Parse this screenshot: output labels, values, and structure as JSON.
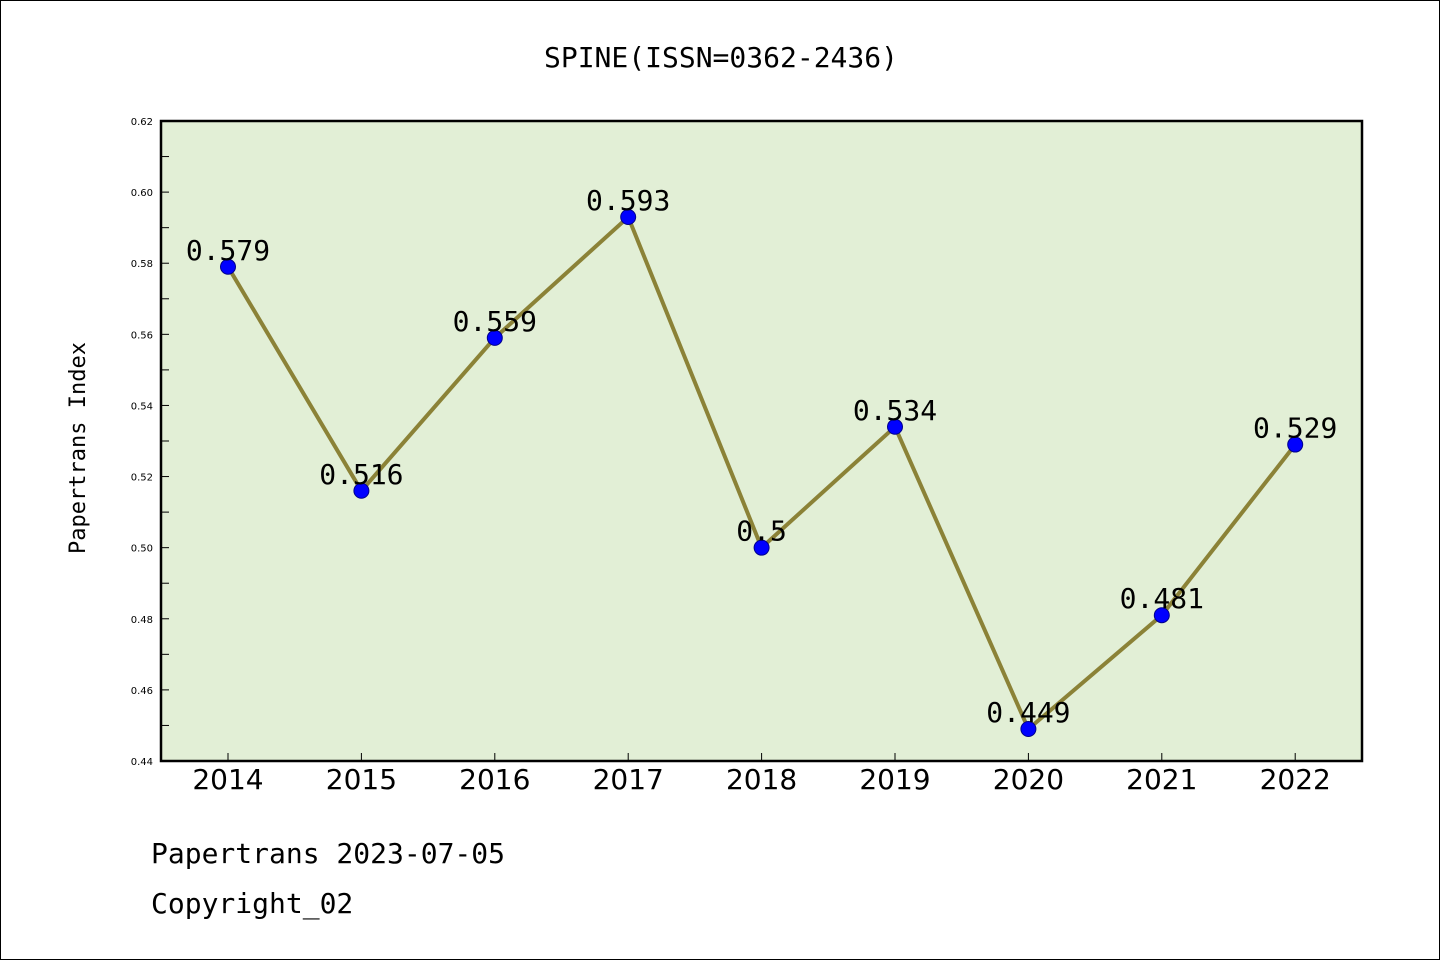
{
  "footer": {
    "date_line": "Papertrans 2023-07-05",
    "copyright_line": "Copyright_02"
  },
  "colors": {
    "plot_background": "#e2efd6",
    "line": "#8b8237",
    "marker": "#0000ff"
  },
  "chart_data": {
    "type": "line",
    "title": "SPINE(ISSN=0362-2436)",
    "xlabel": "",
    "ylabel": "Papertrans Index",
    "x": [
      "2014",
      "2015",
      "2016",
      "2017",
      "2018",
      "2019",
      "2020",
      "2021",
      "2022"
    ],
    "series": [
      {
        "values": [
          0.579,
          0.516,
          0.559,
          0.593,
          0.5,
          0.534,
          0.449,
          0.481,
          0.529
        ],
        "data_labels": [
          "0.579",
          "0.516",
          "0.559",
          "0.593",
          "0.5",
          "0.534",
          "0.449",
          "0.481",
          "0.529"
        ]
      }
    ],
    "ylim": [
      0.44,
      0.62
    ],
    "yticks": [
      "0.44",
      "0.46",
      "0.48",
      "0.50",
      "0.52",
      "0.54",
      "0.56",
      "0.58",
      "0.60",
      "0.62"
    ],
    "grid": false,
    "legend": "none"
  }
}
